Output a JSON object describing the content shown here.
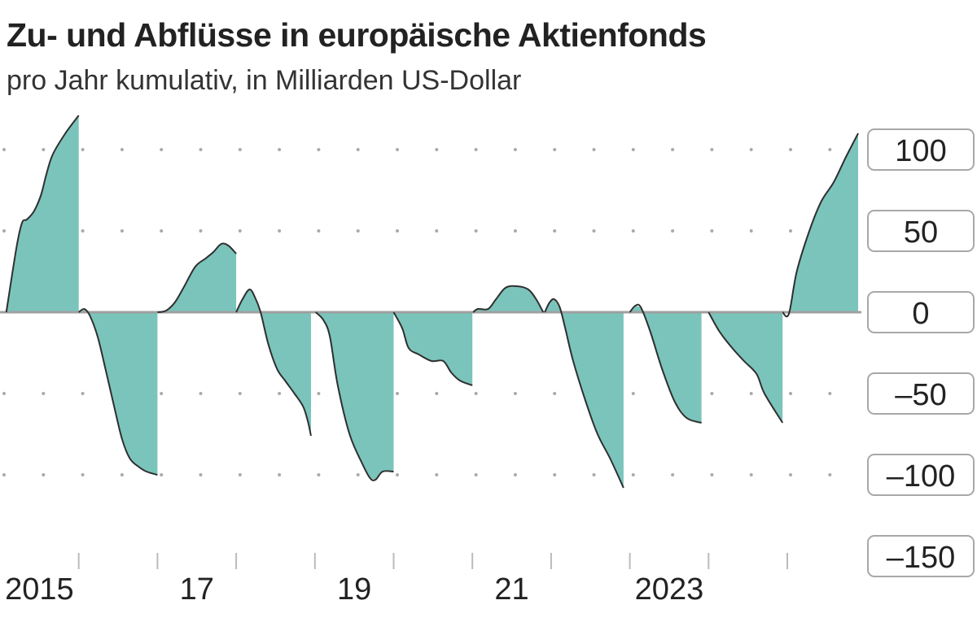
{
  "title": "Zu- und Abflüsse in europäische Aktienfonds",
  "subtitle": "pro Jahr kumulativ, in Milliarden US-Dollar",
  "colors": {
    "fill": "#7ac4bb",
    "line": "#2f2f2f",
    "zero": "#a0a0a0",
    "grid": "#aaaaaa"
  },
  "chart_data": {
    "type": "area",
    "title": "Zu- und Abflüsse in europäische Aktienfonds",
    "subtitle": "pro Jahr kumulativ, in Milliarden US-Dollar",
    "xlim": [
      2015,
      2025.95
    ],
    "ylim": [
      -150,
      125
    ],
    "grid": true,
    "y_ticks": [
      100,
      50,
      0,
      -50,
      -100,
      -150
    ],
    "y_tick_labels": [
      "100",
      "50",
      "0",
      "–50",
      "–100",
      "–150"
    ],
    "x_ticks": [
      2016,
      2017,
      2018,
      2019,
      2020,
      2021,
      2022,
      2023,
      2024,
      2025
    ],
    "x_labels": [
      {
        "pos": 2015.5,
        "text": "2015"
      },
      {
        "pos": 2017.5,
        "text": "17"
      },
      {
        "pos": 2019.5,
        "text": "19"
      },
      {
        "pos": 2021.5,
        "text": "21"
      },
      {
        "pos": 2023.5,
        "text": "2023"
      }
    ],
    "segments": [
      [
        [
          2015.08,
          0
        ],
        [
          2015.21,
          40
        ],
        [
          2015.28,
          55
        ],
        [
          2015.34,
          57
        ],
        [
          2015.43,
          62
        ],
        [
          2015.52,
          72
        ],
        [
          2015.59,
          85
        ],
        [
          2015.67,
          97
        ],
        [
          2015.83,
          110
        ],
        [
          2016.0,
          121
        ]
      ],
      [
        [
          2016.0,
          0
        ],
        [
          2016.07,
          2
        ],
        [
          2016.14,
          -2
        ],
        [
          2016.24,
          -15
        ],
        [
          2016.34,
          -35
        ],
        [
          2016.45,
          -58
        ],
        [
          2016.55,
          -78
        ],
        [
          2016.65,
          -90
        ],
        [
          2016.76,
          -95
        ],
        [
          2016.86,
          -98
        ],
        [
          2017.0,
          -100
        ]
      ],
      [
        [
          2017.0,
          0
        ],
        [
          2017.11,
          1
        ],
        [
          2017.22,
          6
        ],
        [
          2017.33,
          15
        ],
        [
          2017.48,
          28
        ],
        [
          2017.61,
          33
        ],
        [
          2017.71,
          37
        ],
        [
          2017.81,
          42
        ],
        [
          2017.9,
          41
        ],
        [
          2018.0,
          36
        ]
      ],
      [
        [
          2018.0,
          0
        ],
        [
          2018.08,
          8
        ],
        [
          2018.17,
          14
        ],
        [
          2018.24,
          9
        ],
        [
          2018.31,
          0
        ],
        [
          2018.41,
          -20
        ],
        [
          2018.52,
          -35
        ],
        [
          2018.62,
          -42
        ],
        [
          2018.74,
          -50
        ],
        [
          2018.85,
          -58
        ],
        [
          2018.91,
          -67
        ],
        [
          2018.95,
          -76
        ]
      ],
      [
        [
          2019.01,
          0
        ],
        [
          2019.11,
          -5
        ],
        [
          2019.19,
          -15
        ],
        [
          2019.29,
          -45
        ],
        [
          2019.44,
          -75
        ],
        [
          2019.6,
          -93
        ],
        [
          2019.7,
          -102
        ],
        [
          2019.77,
          -103
        ],
        [
          2019.86,
          -98
        ],
        [
          2020.0,
          -98
        ]
      ],
      [
        [
          2020.0,
          0
        ],
        [
          2020.11,
          -10
        ],
        [
          2020.19,
          -22
        ],
        [
          2020.32,
          -26
        ],
        [
          2020.48,
          -30
        ],
        [
          2020.63,
          -30
        ],
        [
          2020.73,
          -37
        ],
        [
          2020.84,
          -42
        ],
        [
          2021.0,
          -45
        ]
      ],
      [
        [
          2021.01,
          0
        ],
        [
          2021.07,
          2
        ],
        [
          2021.2,
          2
        ],
        [
          2021.3,
          8
        ],
        [
          2021.42,
          15
        ],
        [
          2021.56,
          16
        ],
        [
          2021.71,
          14
        ],
        [
          2021.81,
          8
        ],
        [
          2021.9,
          0
        ]
      ],
      [
        [
          2021.92,
          0
        ],
        [
          2021.98,
          6
        ],
        [
          2022.04,
          8
        ],
        [
          2022.11,
          3
        ],
        [
          2022.18,
          -10
        ],
        [
          2022.28,
          -30
        ],
        [
          2022.44,
          -55
        ],
        [
          2022.59,
          -75
        ],
        [
          2022.75,
          -90
        ],
        [
          2022.92,
          -108
        ]
      ],
      [
        [
          2023.0,
          0
        ],
        [
          2023.07,
          4
        ],
        [
          2023.14,
          3
        ],
        [
          2023.26,
          -12
        ],
        [
          2023.41,
          -35
        ],
        [
          2023.57,
          -55
        ],
        [
          2023.72,
          -65
        ],
        [
          2023.91,
          -68
        ]
      ],
      [
        [
          2024.0,
          0
        ],
        [
          2024.14,
          -12
        ],
        [
          2024.3,
          -22
        ],
        [
          2024.45,
          -30
        ],
        [
          2024.61,
          -38
        ],
        [
          2024.71,
          -50
        ],
        [
          2024.94,
          -68
        ]
      ],
      [
        [
          2024.94,
          0
        ],
        [
          2025.02,
          -1
        ],
        [
          2025.12,
          25
        ],
        [
          2025.28,
          50
        ],
        [
          2025.43,
          68
        ],
        [
          2025.59,
          80
        ],
        [
          2025.74,
          95
        ],
        [
          2025.9,
          110
        ]
      ]
    ]
  }
}
